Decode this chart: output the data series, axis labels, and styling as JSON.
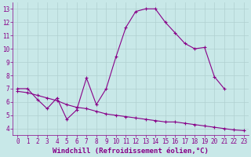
{
  "xlabel": "Windchill (Refroidissement éolien,°C)",
  "bg_color": "#c8e8e8",
  "line_color": "#880088",
  "x_values": [
    0,
    1,
    2,
    3,
    4,
    5,
    6,
    7,
    8,
    9,
    10,
    11,
    12,
    13,
    14,
    15,
    16,
    17,
    18,
    19,
    20,
    21,
    22,
    23
  ],
  "series1": [
    7.0,
    7.0,
    6.2,
    5.5,
    6.3,
    4.7,
    5.4,
    7.8,
    5.8,
    7.0,
    9.4,
    11.6,
    12.8,
    13.0,
    13.0,
    12.0,
    11.2,
    10.4,
    10.0,
    10.1,
    7.9,
    7.0,
    null,
    null
  ],
  "series2": [
    6.8,
    6.7,
    6.5,
    6.3,
    6.1,
    5.8,
    5.6,
    5.5,
    5.3,
    5.1,
    5.0,
    4.9,
    4.8,
    4.7,
    4.6,
    4.5,
    4.5,
    4.4,
    4.3,
    4.2,
    4.1,
    4.0,
    3.9,
    3.85
  ],
  "xlim": [
    -0.5,
    23.5
  ],
  "ylim": [
    3.5,
    13.5
  ],
  "yticks": [
    4,
    5,
    6,
    7,
    8,
    9,
    10,
    11,
    12,
    13
  ],
  "xticks": [
    0,
    1,
    2,
    3,
    4,
    5,
    6,
    7,
    8,
    9,
    10,
    11,
    12,
    13,
    14,
    15,
    16,
    17,
    18,
    19,
    20,
    21,
    22,
    23
  ],
  "grid_color": "#b0d0d0",
  "font_color": "#880088",
  "tick_fontsize": 5.5,
  "label_fontsize": 6.5
}
